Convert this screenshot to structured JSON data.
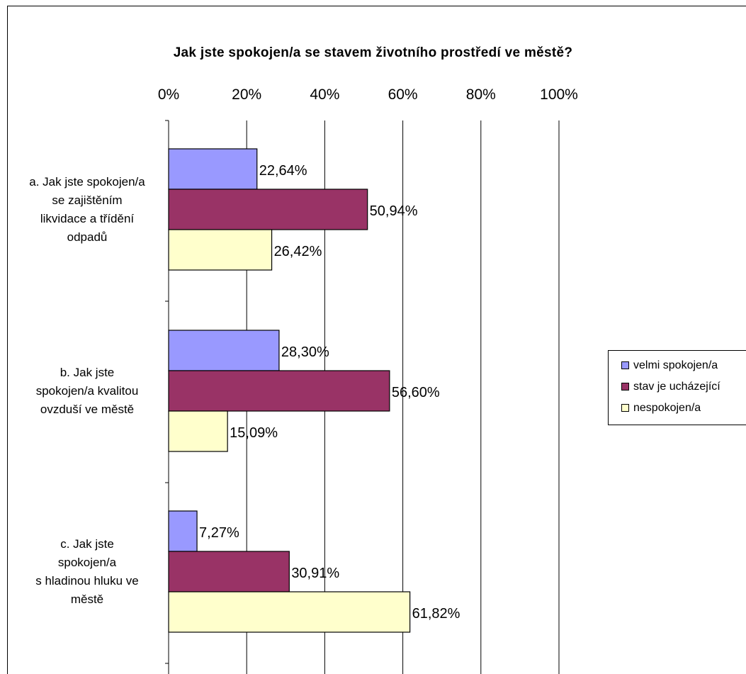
{
  "chart_data": {
    "type": "bar",
    "orientation": "horizontal",
    "title": "Jak jste spokojen/a se stavem životního prostředí ve městě?",
    "xlim": [
      0,
      100
    ],
    "x_ticks": [
      "0%",
      "20%",
      "40%",
      "60%",
      "80%",
      "100%"
    ],
    "grid": true,
    "legend_position": "right",
    "categories": [
      [
        "a. Jak jste spokojen/a",
        "se zajištěním",
        "likvidace a třídění",
        "odpadů"
      ],
      [
        "b.  Jak jste",
        "spokojen/a kvalitou",
        "ovzduší ve městě"
      ],
      [
        "c.  Jak jste",
        "spokojen/a",
        "s hladinou hluku ve",
        "městě"
      ]
    ],
    "series": [
      {
        "name": "velmi spokojen/a",
        "color": "#9999ff",
        "values": [
          22.64,
          28.3,
          7.27
        ],
        "labels": [
          "22,64%",
          "28,30%",
          "7,27%"
        ]
      },
      {
        "name": "stav je ucházející",
        "color": "#993366",
        "values": [
          50.94,
          56.6,
          30.91
        ],
        "labels": [
          "50,94%",
          "56,60%",
          "30,91%"
        ]
      },
      {
        "name": "nespokojen/a",
        "color": "#ffffcc",
        "values": [
          26.42,
          15.09,
          61.82
        ],
        "labels": [
          "26,42%",
          "15,09%",
          "61,82%"
        ]
      }
    ]
  }
}
